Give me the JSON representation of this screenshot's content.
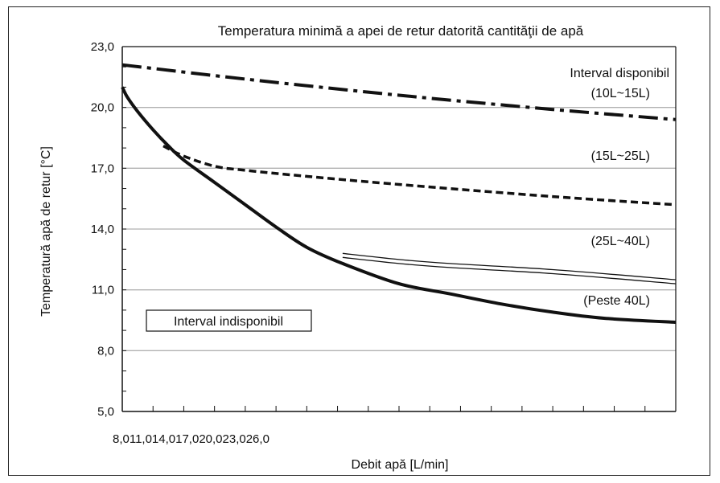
{
  "chart_data": {
    "type": "line",
    "title": "Temperatura minimă a apei de retur datorită cantităţii de apă",
    "xlabel": "Debit apă [L/min]",
    "ylabel": "Temperatură apă de retur [°C]",
    "x_tick_text": "8,011,014,017,020,023,026,0",
    "x_ticks": [
      8,
      11,
      14,
      17,
      20,
      23,
      26
    ],
    "x_range": [
      8,
      62
    ],
    "y_ticks": [
      "5,0",
      "8,0",
      "11,0",
      "14,0",
      "17,0",
      "20,0",
      "23,0"
    ],
    "y_tick_values": [
      5,
      8,
      11,
      14,
      17,
      20,
      23
    ],
    "ylim": [
      5,
      23
    ],
    "grid": "horizontal",
    "series": [
      {
        "name": "(10L~15L)",
        "style": "dashdot",
        "x": [
          8,
          20,
          35,
          50,
          62
        ],
        "y": [
          22.1,
          21.4,
          20.6,
          19.9,
          19.4
        ]
      },
      {
        "name": "(15L~25L)",
        "style": "dashed",
        "x": [
          12,
          14,
          17,
          20,
          26,
          35,
          50,
          62
        ],
        "y": [
          18.1,
          17.6,
          17.1,
          16.9,
          16.6,
          16.2,
          15.6,
          15.2
        ]
      },
      {
        "name": "(25L~40L)",
        "style": "double",
        "x": [
          29.5,
          35,
          40,
          50,
          62
        ],
        "y": [
          12.7,
          12.4,
          12.2,
          11.9,
          11.4
        ]
      },
      {
        "name": "(Peste 40L)",
        "style": "solid",
        "x": [
          8,
          8.5,
          9.5,
          11,
          12.5,
          14,
          17,
          20,
          23,
          26,
          29.5,
          35,
          40,
          45,
          50,
          55,
          62
        ],
        "y": [
          21.0,
          20.5,
          19.8,
          18.9,
          18.1,
          17.4,
          16.3,
          15.2,
          14.1,
          13.1,
          12.3,
          11.3,
          10.8,
          10.3,
          9.9,
          9.6,
          9.4
        ]
      }
    ],
    "annotations": {
      "available": "Interval disponibil",
      "l10_15": "(10L~15L)",
      "l15_25": "(15L~25L)",
      "l25_40": "(25L~40L)",
      "over40": "(Peste 40L)",
      "unavailable": "Interval indisponibil"
    },
    "colors": {
      "line": "#111111",
      "grid": "#b0b0b0",
      "background": "#ffffff"
    }
  }
}
